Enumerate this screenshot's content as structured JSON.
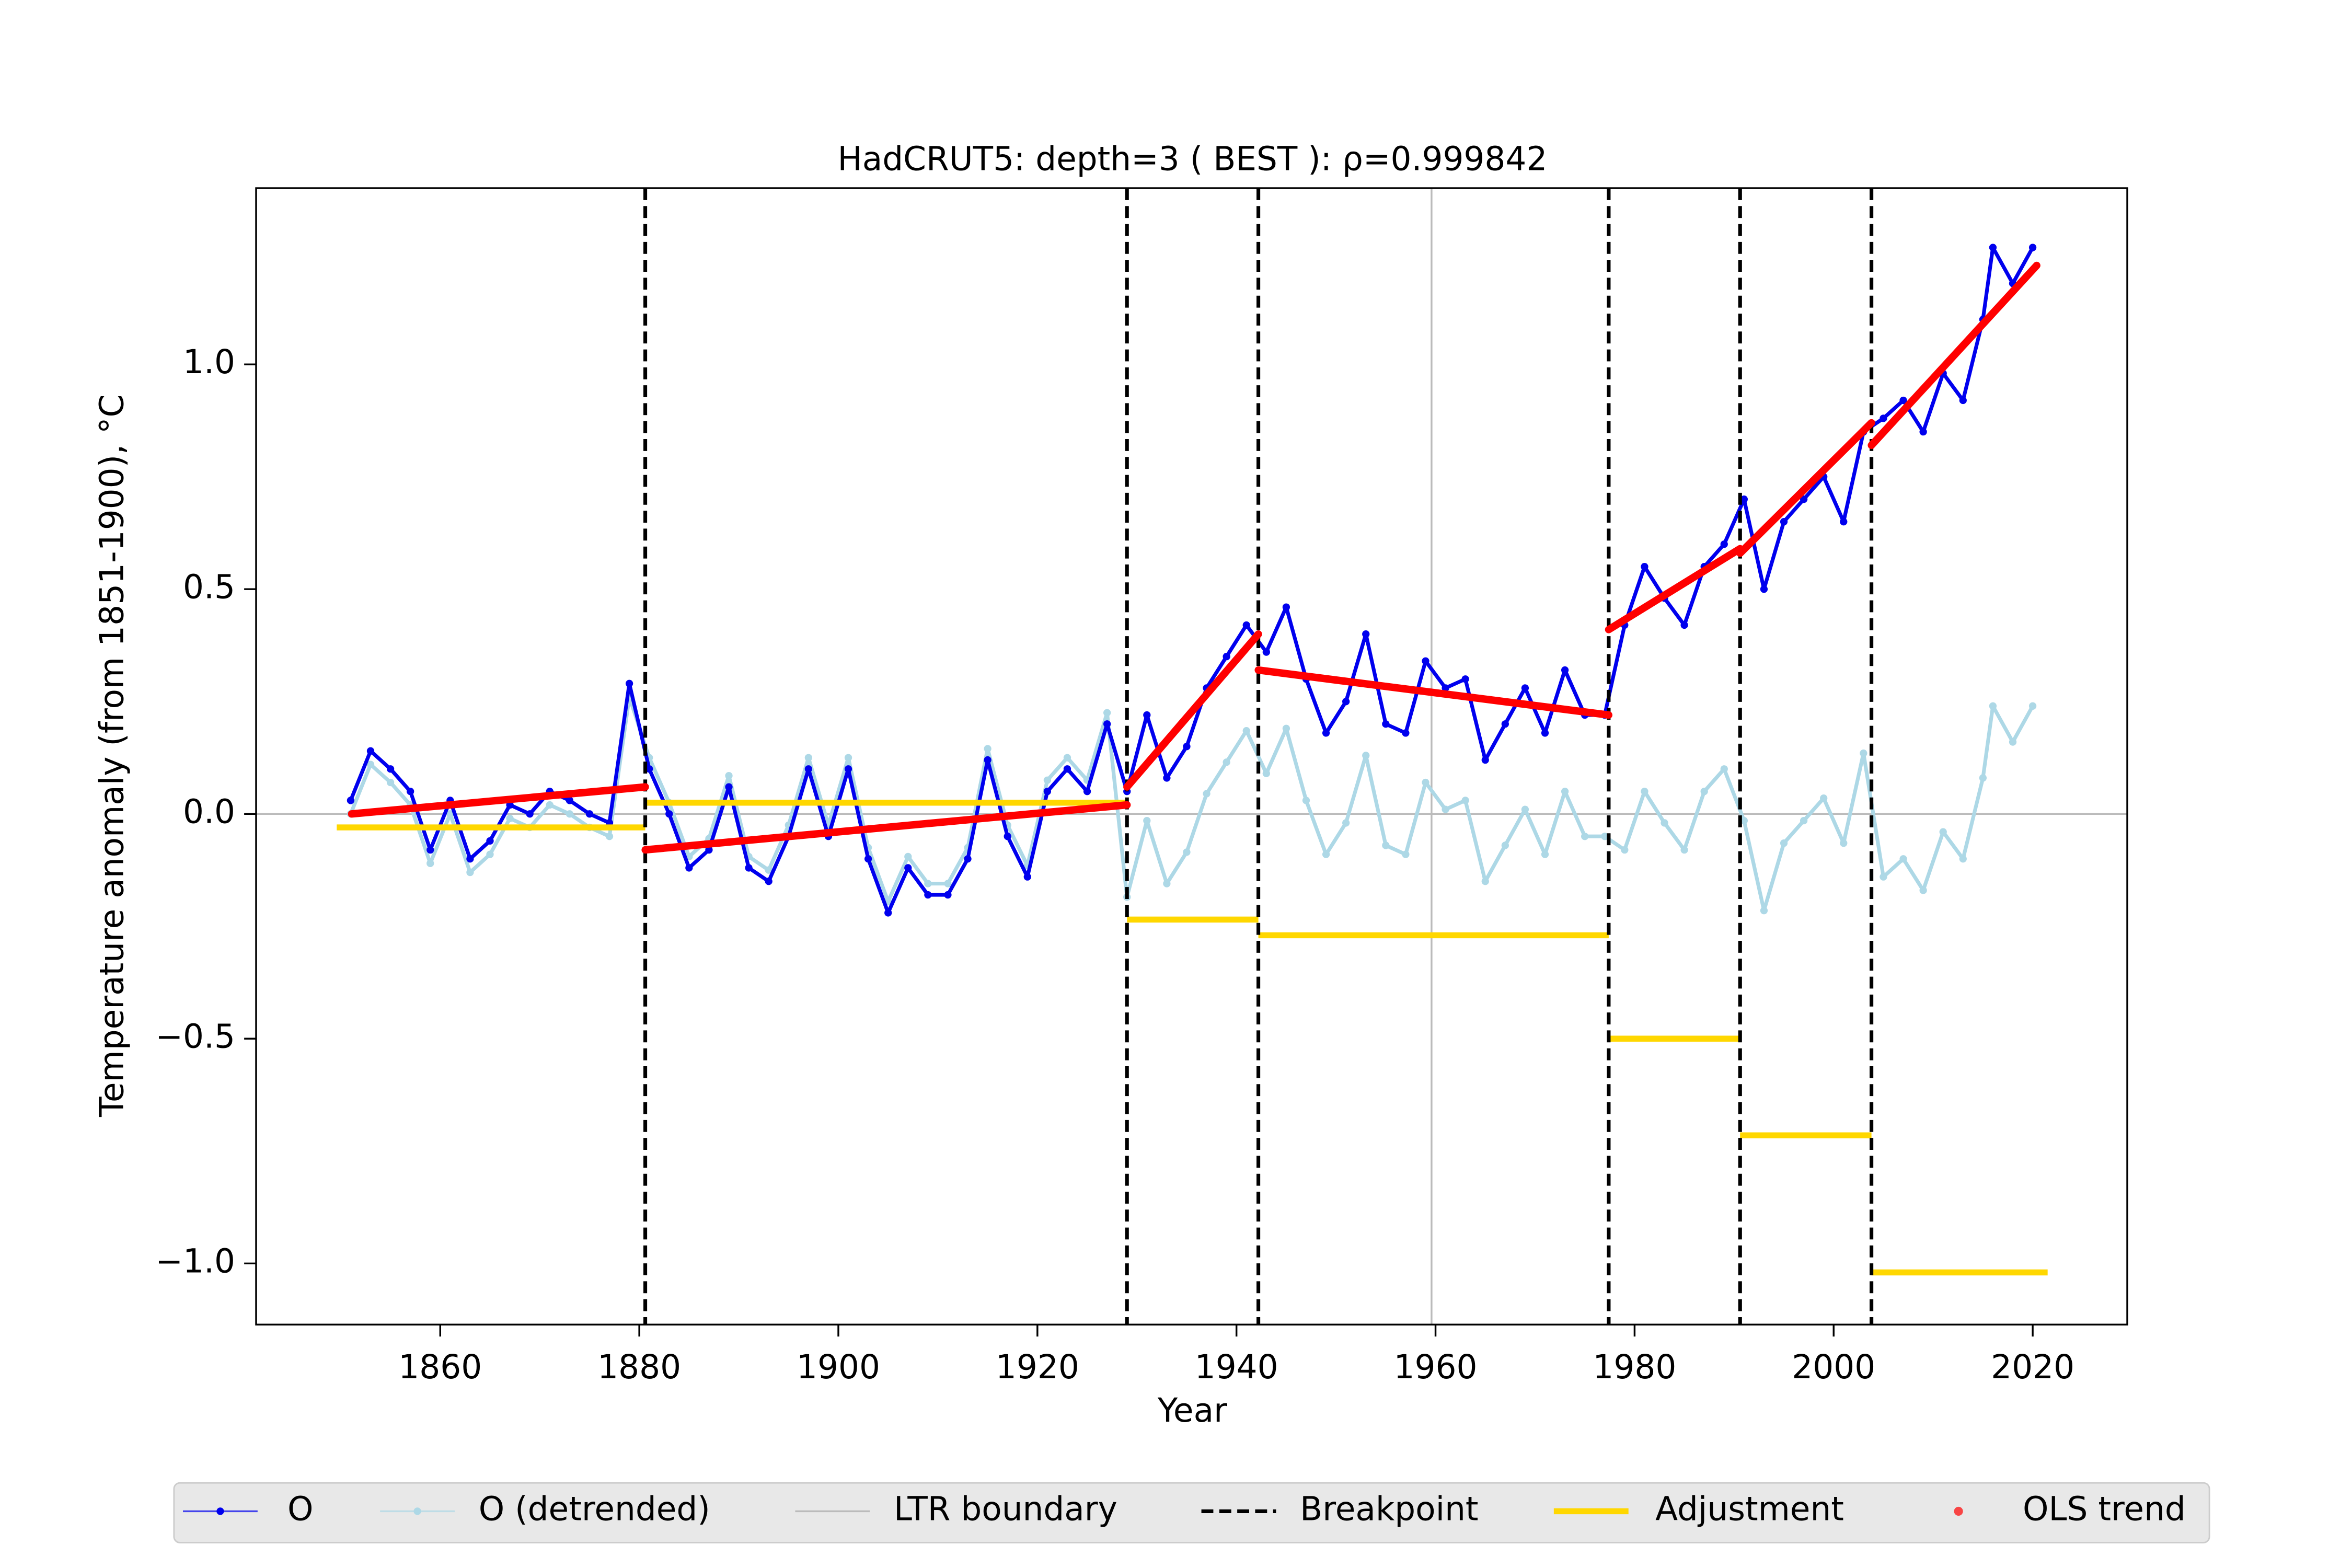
{
  "chart_data": {
    "type": "line",
    "title": "HadCRUT5: depth=3 ( BEST ): ρ=0.999842",
    "xlabel": "Year",
    "ylabel": "Temperature anomaly (from 1851-1900), °C",
    "x": [
      1851,
      1853,
      1855,
      1857,
      1859,
      1861,
      1863,
      1865,
      1867,
      1869,
      1871,
      1873,
      1875,
      1877,
      1879,
      1881,
      1883,
      1885,
      1887,
      1889,
      1891,
      1893,
      1895,
      1897,
      1899,
      1901,
      1903,
      1905,
      1907,
      1909,
      1911,
      1913,
      1915,
      1917,
      1919,
      1921,
      1923,
      1925,
      1927,
      1929,
      1931,
      1933,
      1935,
      1937,
      1939,
      1941,
      1943,
      1945,
      1947,
      1949,
      1951,
      1953,
      1955,
      1957,
      1959,
      1961,
      1963,
      1965,
      1967,
      1969,
      1971,
      1973,
      1975,
      1977,
      1979,
      1981,
      1983,
      1985,
      1987,
      1989,
      1991,
      1993,
      1995,
      1997,
      1999,
      2001,
      2003,
      2005,
      2007,
      2009,
      2011,
      2013,
      2015,
      2016,
      2018,
      2020
    ],
    "series": [
      {
        "name": "O",
        "color": "#0000ee",
        "values": [
          0.03,
          0.14,
          0.1,
          0.05,
          -0.08,
          0.03,
          -0.1,
          -0.06,
          0.02,
          0.0,
          0.05,
          0.03,
          0.0,
          -0.02,
          0.29,
          0.1,
          0.0,
          -0.12,
          -0.08,
          0.06,
          -0.12,
          -0.15,
          -0.05,
          0.1,
          -0.05,
          0.1,
          -0.1,
          -0.22,
          -0.12,
          -0.18,
          -0.18,
          -0.1,
          0.12,
          -0.05,
          -0.14,
          0.05,
          0.1,
          0.05,
          0.2,
          0.05,
          0.22,
          0.08,
          0.15,
          0.28,
          0.35,
          0.42,
          0.36,
          0.46,
          0.3,
          0.18,
          0.25,
          0.4,
          0.2,
          0.18,
          0.34,
          0.28,
          0.3,
          0.12,
          0.2,
          0.28,
          0.18,
          0.32,
          0.22,
          0.22,
          0.42,
          0.55,
          0.48,
          0.42,
          0.55,
          0.6,
          0.7,
          0.5,
          0.65,
          0.7,
          0.75,
          0.65,
          0.85,
          0.88,
          0.92,
          0.85,
          0.98,
          0.92,
          1.1,
          1.26,
          1.18,
          1.26
        ]
      },
      {
        "name": "O (detrended)",
        "color": "#add8e6",
        "values": [
          0.0,
          0.11,
          0.07,
          0.02,
          -0.11,
          0.0,
          -0.13,
          -0.09,
          -0.01,
          -0.03,
          0.02,
          0.0,
          -0.03,
          -0.05,
          0.26,
          0.125,
          0.025,
          -0.095,
          -0.055,
          0.085,
          -0.095,
          -0.125,
          -0.025,
          0.125,
          -0.025,
          0.125,
          -0.075,
          -0.195,
          -0.095,
          -0.155,
          -0.155,
          -0.075,
          0.145,
          -0.025,
          -0.115,
          0.075,
          0.125,
          0.075,
          0.225,
          -0.185,
          -0.015,
          -0.155,
          -0.085,
          0.045,
          0.115,
          0.185,
          0.09,
          0.19,
          0.03,
          -0.09,
          -0.02,
          0.13,
          -0.07,
          -0.09,
          0.07,
          0.01,
          0.03,
          -0.15,
          -0.07,
          0.01,
          -0.09,
          0.05,
          -0.05,
          -0.05,
          -0.08,
          0.05,
          -0.02,
          -0.08,
          0.05,
          0.1,
          -0.015,
          -0.215,
          -0.065,
          -0.015,
          0.035,
          -0.065,
          0.135,
          -0.14,
          -0.1,
          -0.17,
          -0.04,
          -0.1,
          0.08,
          0.24,
          0.16,
          0.24
        ]
      }
    ],
    "ltr_boundary": {
      "name": "LTR boundary",
      "color": "#bbbbbb",
      "x": 1959.6,
      "y": 0
    },
    "breakpoints": {
      "name": "Breakpoint",
      "color": "#000000",
      "x": [
        1880.6,
        1929.0,
        1942.2,
        1977.4,
        1990.6,
        2003.8
      ]
    },
    "adjustments": {
      "name": "Adjustment",
      "color": "#ffd700",
      "segments": [
        {
          "x": [
            1849.6,
            1880.6
          ],
          "value": -0.03
        },
        {
          "x": [
            1880.6,
            1929.0
          ],
          "value": 0.025
        },
        {
          "x": [
            1929.0,
            1942.2
          ],
          "value": -0.235
        },
        {
          "x": [
            1942.2,
            1977.4
          ],
          "value": -0.27
        },
        {
          "x": [
            1977.4,
            1990.6
          ],
          "value": -0.5
        },
        {
          "x": [
            1990.6,
            2003.8
          ],
          "value": -0.715
        },
        {
          "x": [
            2003.8,
            2021.5
          ],
          "value": -1.02
        }
      ]
    },
    "trends": {
      "name": "OLS trend",
      "color": "#ff0000",
      "segments": [
        {
          "x": [
            1851.1,
            1880.6
          ],
          "y": [
            0.0,
            0.06
          ]
        },
        {
          "x": [
            1880.6,
            1929.0
          ],
          "y": [
            -0.08,
            0.02
          ]
        },
        {
          "x": [
            1929.0,
            1942.2
          ],
          "y": [
            0.06,
            0.4
          ]
        },
        {
          "x": [
            1942.2,
            1977.4
          ],
          "y": [
            0.32,
            0.22
          ]
        },
        {
          "x": [
            1977.4,
            1990.6
          ],
          "y": [
            0.41,
            0.59
          ]
        },
        {
          "x": [
            1990.6,
            2003.8
          ],
          "y": [
            0.58,
            0.87
          ]
        },
        {
          "x": [
            2003.8,
            2020.4
          ],
          "y": [
            0.82,
            1.22
          ]
        }
      ]
    },
    "xlim": [
      1841.5,
      2029.5
    ],
    "ylim": [
      -1.136,
      1.392
    ],
    "xticks": [
      1860,
      1880,
      1900,
      1920,
      1940,
      1960,
      1980,
      2000,
      2020
    ],
    "yticks": [
      {
        "value": -1.0,
        "label": "−1.0"
      },
      {
        "value": -0.5,
        "label": "−0.5"
      },
      {
        "value": 0.0,
        "label": "0.0"
      },
      {
        "value": 0.5,
        "label": "0.5"
      },
      {
        "value": 1.0,
        "label": "1.0"
      }
    ],
    "legend": "lower center"
  }
}
